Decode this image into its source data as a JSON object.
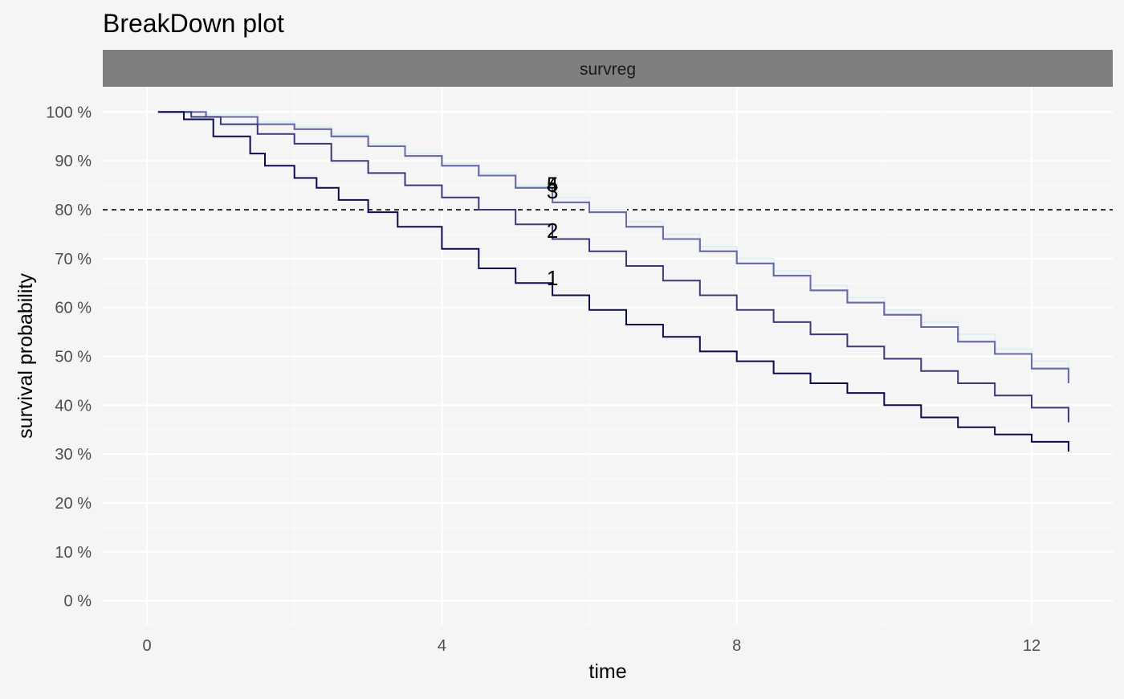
{
  "chart_data": {
    "type": "line",
    "title": "BreakDown plot",
    "facet_label": "survreg",
    "xlabel": "time",
    "ylabel": "survival probability",
    "xlim": [
      -0.6,
      13.1
    ],
    "ylim": [
      -0.05,
      1.05
    ],
    "x_ticks": [
      0,
      4,
      8,
      12
    ],
    "y_ticks": [
      0,
      0.1,
      0.2,
      0.3,
      0.4,
      0.5,
      0.6,
      0.7,
      0.8,
      0.9,
      1.0
    ],
    "y_tick_labels": [
      "0 %",
      "10 %",
      "20 %",
      "30 %",
      "40 %",
      "50 %",
      "60 %",
      "70 %",
      "80 %",
      "90 %",
      "100 %"
    ],
    "grid": true,
    "legend": "none",
    "reference_line": {
      "y": 0.8,
      "style": "dashed"
    },
    "series": [
      {
        "label": "1",
        "color": "#0b0b4f",
        "label_pos": [
          5.5,
          0.66
        ],
        "points": [
          [
            0.15,
            1.0
          ],
          [
            0.5,
            0.985
          ],
          [
            0.9,
            0.95
          ],
          [
            1.4,
            0.915
          ],
          [
            1.6,
            0.89
          ],
          [
            2.0,
            0.865
          ],
          [
            2.3,
            0.845
          ],
          [
            2.6,
            0.82
          ],
          [
            3.0,
            0.795
          ],
          [
            3.4,
            0.765
          ],
          [
            4.0,
            0.72
          ],
          [
            4.5,
            0.68
          ],
          [
            5.0,
            0.65
          ],
          [
            5.5,
            0.625
          ],
          [
            6.0,
            0.595
          ],
          [
            6.5,
            0.565
          ],
          [
            7.0,
            0.54
          ],
          [
            7.5,
            0.51
          ],
          [
            8.0,
            0.49
          ],
          [
            8.5,
            0.465
          ],
          [
            9.0,
            0.445
          ],
          [
            9.5,
            0.425
          ],
          [
            10.0,
            0.4
          ],
          [
            10.5,
            0.375
          ],
          [
            11.0,
            0.355
          ],
          [
            11.5,
            0.34
          ],
          [
            12.0,
            0.325
          ],
          [
            12.5,
            0.305
          ]
        ]
      },
      {
        "label": "2",
        "color": "#3a3a7a",
        "label_pos": [
          5.5,
          0.757
        ],
        "points": [
          [
            0.15,
            1.0
          ],
          [
            0.6,
            0.99
          ],
          [
            1.0,
            0.975
          ],
          [
            1.5,
            0.955
          ],
          [
            2.0,
            0.935
          ],
          [
            2.5,
            0.9
          ],
          [
            3.0,
            0.875
          ],
          [
            3.5,
            0.85
          ],
          [
            4.0,
            0.825
          ],
          [
            4.5,
            0.8
          ],
          [
            5.0,
            0.77
          ],
          [
            5.5,
            0.74
          ],
          [
            6.0,
            0.715
          ],
          [
            6.5,
            0.685
          ],
          [
            7.0,
            0.655
          ],
          [
            7.5,
            0.625
          ],
          [
            8.0,
            0.595
          ],
          [
            8.5,
            0.57
          ],
          [
            9.0,
            0.545
          ],
          [
            9.5,
            0.52
          ],
          [
            10.0,
            0.495
          ],
          [
            10.5,
            0.47
          ],
          [
            11.0,
            0.445
          ],
          [
            11.5,
            0.42
          ],
          [
            12.0,
            0.395
          ],
          [
            12.5,
            0.365
          ]
        ]
      },
      {
        "label": "3",
        "color": "#6a6aa8",
        "label_pos": [
          5.5,
          0.838
        ],
        "points": [
          [
            0.15,
            1.0
          ],
          [
            0.8,
            0.99
          ],
          [
            1.5,
            0.975
          ],
          [
            2.0,
            0.965
          ],
          [
            2.5,
            0.95
          ],
          [
            3.0,
            0.93
          ],
          [
            3.5,
            0.91
          ],
          [
            4.0,
            0.89
          ],
          [
            4.5,
            0.87
          ],
          [
            5.0,
            0.845
          ],
          [
            5.5,
            0.815
          ],
          [
            6.0,
            0.795
          ],
          [
            6.5,
            0.765
          ],
          [
            7.0,
            0.74
          ],
          [
            7.5,
            0.715
          ],
          [
            8.0,
            0.69
          ],
          [
            8.5,
            0.665
          ],
          [
            9.0,
            0.635
          ],
          [
            9.5,
            0.61
          ],
          [
            10.0,
            0.585
          ],
          [
            10.5,
            0.56
          ],
          [
            11.0,
            0.53
          ],
          [
            11.5,
            0.505
          ],
          [
            12.0,
            0.475
          ],
          [
            12.5,
            0.445
          ]
        ]
      },
      {
        "label": "4",
        "color": "#8585bf",
        "label_pos": [
          5.5,
          0.852
        ],
        "points": [
          [
            0.15,
            1.0
          ],
          [
            0.8,
            0.99
          ],
          [
            1.5,
            0.975
          ],
          [
            2.0,
            0.965
          ],
          [
            2.5,
            0.95
          ],
          [
            3.0,
            0.93
          ],
          [
            3.5,
            0.91
          ],
          [
            4.0,
            0.89
          ],
          [
            4.5,
            0.87
          ],
          [
            5.0,
            0.845
          ],
          [
            5.5,
            0.815
          ],
          [
            6.0,
            0.795
          ],
          [
            6.5,
            0.765
          ],
          [
            7.0,
            0.74
          ],
          [
            7.5,
            0.715
          ],
          [
            8.0,
            0.69
          ],
          [
            8.5,
            0.665
          ],
          [
            9.0,
            0.635
          ],
          [
            9.5,
            0.61
          ],
          [
            10.0,
            0.585
          ],
          [
            10.5,
            0.56
          ],
          [
            11.0,
            0.53
          ],
          [
            11.5,
            0.505
          ],
          [
            12.0,
            0.475
          ],
          [
            12.5,
            0.445
          ]
        ]
      },
      {
        "label": "5",
        "color": "#dff0f5",
        "label_pos": [
          5.5,
          0.852
        ],
        "points": [
          [
            0.15,
            1.0
          ],
          [
            0.8,
            0.995
          ],
          [
            1.5,
            0.98
          ],
          [
            2.0,
            0.97
          ],
          [
            2.5,
            0.955
          ],
          [
            3.0,
            0.935
          ],
          [
            3.5,
            0.915
          ],
          [
            4.0,
            0.895
          ],
          [
            4.5,
            0.875
          ],
          [
            5.0,
            0.85
          ],
          [
            5.5,
            0.825
          ],
          [
            6.0,
            0.8
          ],
          [
            6.5,
            0.775
          ],
          [
            7.0,
            0.75
          ],
          [
            7.5,
            0.725
          ],
          [
            8.0,
            0.7
          ],
          [
            8.5,
            0.675
          ],
          [
            9.0,
            0.645
          ],
          [
            9.5,
            0.62
          ],
          [
            10.0,
            0.595
          ],
          [
            10.5,
            0.57
          ],
          [
            11.0,
            0.545
          ],
          [
            11.5,
            0.515
          ],
          [
            12.0,
            0.49
          ],
          [
            12.5,
            0.46
          ]
        ]
      }
    ]
  }
}
